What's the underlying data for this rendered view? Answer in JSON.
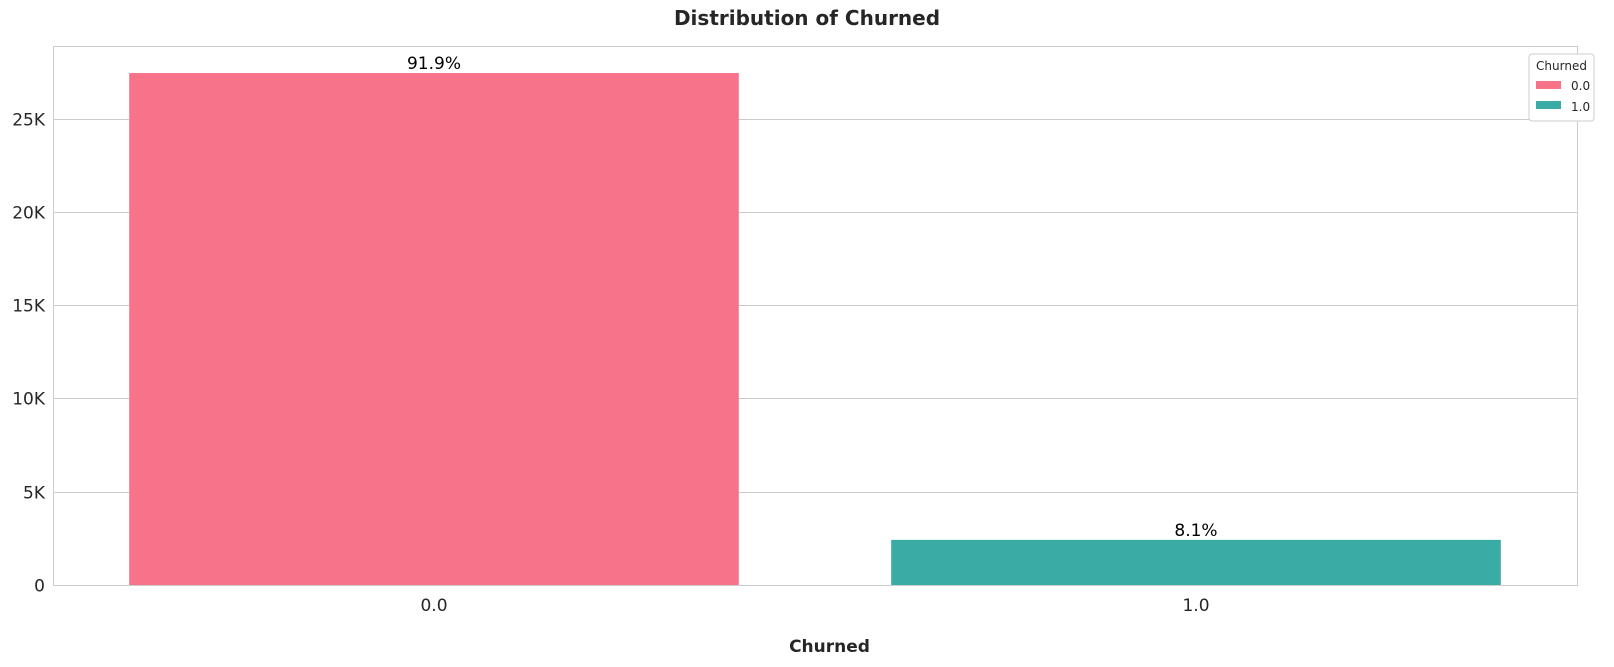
{
  "chart_data": {
    "type": "bar",
    "title": "Distribution of Churned",
    "xlabel": "Churned",
    "ylabel": "",
    "categories": [
      "0.0",
      "1.0"
    ],
    "values": [
      27450,
      2420
    ],
    "data_labels": [
      "91.9%",
      "8.1%"
    ],
    "colors": [
      "#f7738a",
      "#3aaca5"
    ],
    "ylim": [
      0,
      28900
    ],
    "yticks": [
      0,
      5000,
      10000,
      15000,
      20000,
      25000
    ],
    "ytick_labels": [
      "0",
      "5K",
      "10K",
      "15K",
      "20K",
      "25K"
    ],
    "grid": "y",
    "legend": {
      "title": "Churned",
      "placement": "top-right",
      "entries": [
        {
          "label": "0.0",
          "color": "#f7738a"
        },
        {
          "label": "1.0",
          "color": "#3aaca5"
        }
      ]
    }
  }
}
